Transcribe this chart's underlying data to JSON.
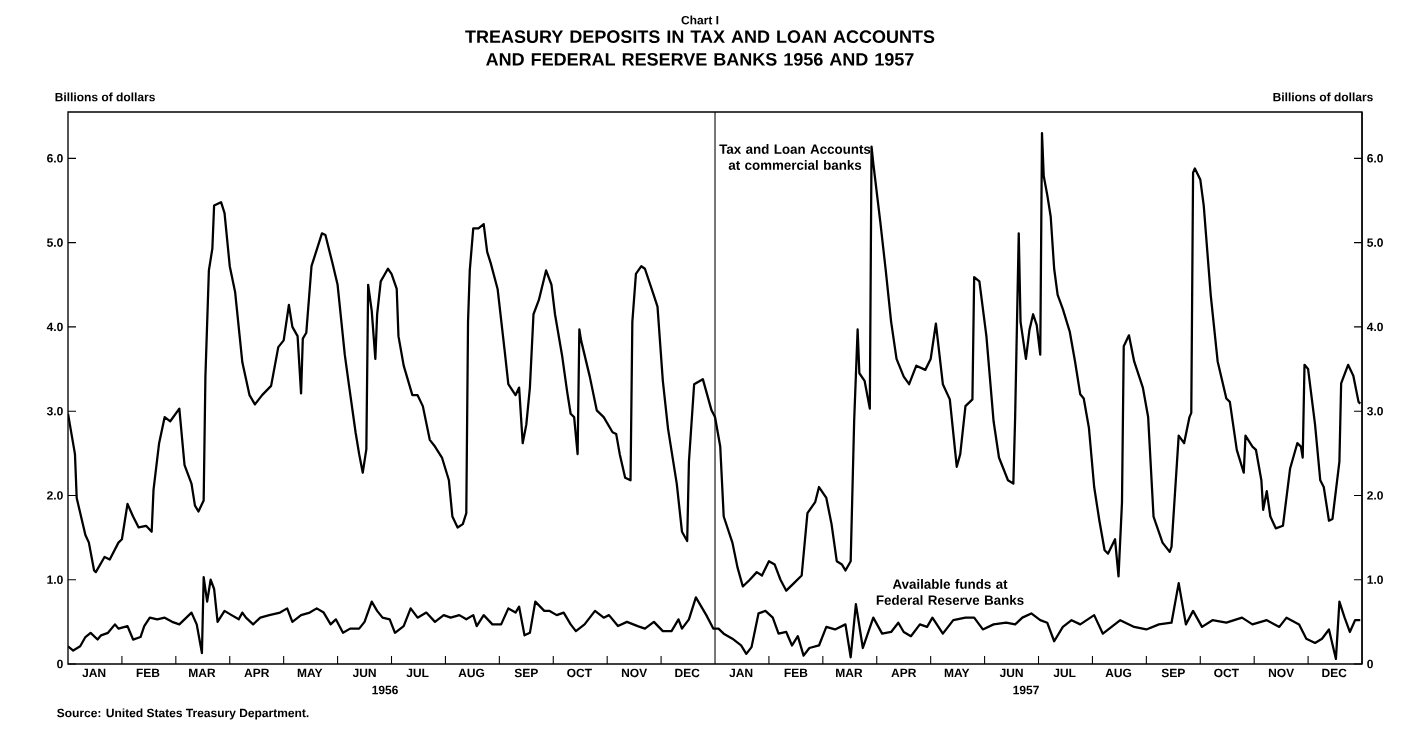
{
  "chart_data": {
    "type": "line",
    "subtitle": "Chart I",
    "title": "TREASURY DEPOSITS IN TAX AND LOAN ACCOUNTS AND FEDERAL RESERVE BANKS 1956 AND 1957",
    "ylabel": "Billions of dollars",
    "y2label": "Billions of dollars",
    "annotations": [
      "1956",
      "1957",
      "Source: United States Treasury Department."
    ],
    "xlim": [
      "1956-01-01",
      "1958-01-01"
    ],
    "ylim": [
      0,
      6.55
    ],
    "y2lim": [
      0,
      6.55
    ],
    "xticks": [
      {
        "value": "1956-01-16",
        "label": "JAN"
      },
      {
        "value": "1956-02-01",
        "label": null
      },
      {
        "value": "1956-02-15",
        "label": "FEB"
      },
      {
        "value": "1956-03-01",
        "label": null
      },
      {
        "value": "1956-03-16",
        "label": "MAR"
      },
      {
        "value": "1956-04-01",
        "label": null
      },
      {
        "value": "1956-04-16",
        "label": "APR"
      },
      {
        "value": "1956-05-01",
        "label": null
      },
      {
        "value": "1956-05-16",
        "label": "MAY"
      },
      {
        "value": "1956-06-01",
        "label": null
      },
      {
        "value": "1956-06-16",
        "label": "JUN"
      },
      {
        "value": "1956-07-01",
        "label": null
      },
      {
        "value": "1956-07-16",
        "label": "JUL"
      },
      {
        "value": "1956-08-01",
        "label": null
      },
      {
        "value": "1956-08-16",
        "label": "AUG"
      },
      {
        "value": "1956-09-01",
        "label": null
      },
      {
        "value": "1956-09-16",
        "label": "SEP"
      },
      {
        "value": "1956-10-01",
        "label": null
      },
      {
        "value": "1956-10-16",
        "label": "OCT"
      },
      {
        "value": "1956-11-01",
        "label": null
      },
      {
        "value": "1956-11-16",
        "label": "NOV"
      },
      {
        "value": "1956-12-01",
        "label": null
      },
      {
        "value": "1956-12-16",
        "label": "DEC"
      },
      {
        "value": "1957-01-16",
        "label": "JAN"
      },
      {
        "value": "1957-02-01",
        "label": null
      },
      {
        "value": "1957-02-15",
        "label": "FEB"
      },
      {
        "value": "1957-03-01",
        "label": null
      },
      {
        "value": "1957-03-16",
        "label": "MAR"
      },
      {
        "value": "1957-04-01",
        "label": null
      },
      {
        "value": "1957-04-16",
        "label": "APR"
      },
      {
        "value": "1957-05-01",
        "label": null
      },
      {
        "value": "1957-05-16",
        "label": "MAY"
      },
      {
        "value": "1957-06-01",
        "label": null
      },
      {
        "value": "1957-06-16",
        "label": "JUN"
      },
      {
        "value": "1957-07-01",
        "label": null
      },
      {
        "value": "1957-07-16",
        "label": "JUL"
      },
      {
        "value": "1957-08-01",
        "label": null
      },
      {
        "value": "1957-08-16",
        "label": "AUG"
      },
      {
        "value": "1957-09-01",
        "label": null
      },
      {
        "value": "1957-09-16",
        "label": "SEP"
      },
      {
        "value": "1957-10-01",
        "label": null
      },
      {
        "value": "1957-10-16",
        "label": "OCT"
      },
      {
        "value": "1957-11-01",
        "label": null
      },
      {
        "value": "1957-11-16",
        "label": "NOV"
      },
      {
        "value": "1957-12-01",
        "label": null
      },
      {
        "value": "1957-12-16",
        "label": "DEC"
      }
    ],
    "yticks": [
      0,
      {
        "value": 1,
        "label": "1.0"
      },
      {
        "value": 2,
        "label": "2.0"
      },
      {
        "value": 3,
        "label": "3.0"
      },
      {
        "value": 4,
        "label": "4.0"
      },
      {
        "value": 5,
        "label": "5.0"
      },
      {
        "value": 6,
        "label": "6.0"
      }
    ],
    "y2ticks": [
      0,
      {
        "value": 1,
        "label": "1.0"
      },
      {
        "value": 2,
        "label": "2.0"
      },
      {
        "value": 3,
        "label": "3.0"
      },
      {
        "value": 4,
        "label": "4.0"
      },
      {
        "value": 5,
        "label": "5.0"
      },
      {
        "value": 6,
        "label": "6.0"
      }
    ],
    "ref_lines": [
      {
        "axis": "x",
        "value": "1957-01-01"
      }
    ],
    "legend": false,
    "series": [
      {
        "name": "Tax and Loan Accounts at commercial banks",
        "color": "#000000",
        "x": [
          "1956-01-01",
          "1956-01-05",
          "1956-01-06",
          "1956-01-11",
          "1956-01-13",
          "1956-01-16",
          "1956-01-17",
          "1956-01-22",
          "1956-01-25",
          "1956-01-30",
          "1956-02-01",
          "1956-02-04",
          "1956-02-07",
          "1956-02-10",
          "1956-02-14",
          "1956-02-17",
          "1956-02-18",
          "1956-02-21",
          "1956-02-24",
          "1956-02-27",
          "1956-03-03",
          "1956-03-06",
          "1956-03-10",
          "1956-03-12",
          "1956-03-14",
          "1956-03-17",
          "1956-03-18",
          "1956-03-20",
          "1956-03-22",
          "1956-03-23",
          "1956-03-27",
          "1956-03-29",
          "1956-04-01",
          "1956-04-04",
          "1956-04-08",
          "1956-04-12",
          "1956-04-15",
          "1956-04-19",
          "1956-04-24",
          "1956-04-28",
          "1956-05-01",
          "1956-05-04",
          "1956-05-06",
          "1956-05-09",
          "1956-05-11",
          "1956-05-12",
          "1956-05-14",
          "1956-05-17",
          "1956-05-21",
          "1956-05-23",
          "1956-05-25",
          "1956-05-29",
          "1956-06-01",
          "1956-06-05",
          "1956-06-07",
          "1956-06-11",
          "1956-06-13",
          "1956-06-15",
          "1956-06-17",
          "1956-06-18",
          "1956-06-20",
          "1956-06-22",
          "1956-06-23",
          "1956-06-25",
          "1956-06-29",
          "1956-07-01",
          "1956-07-04",
          "1956-07-05",
          "1956-07-08",
          "1956-07-13",
          "1956-07-16",
          "1956-07-19",
          "1956-07-23",
          "1956-07-26",
          "1956-07-30",
          "1956-08-03",
          "1956-08-05",
          "1956-08-08",
          "1956-08-11",
          "1956-08-13",
          "1956-08-14",
          "1956-08-15",
          "1956-08-17",
          "1956-08-20",
          "1956-08-23",
          "1956-08-25",
          "1956-08-27",
          "1956-08-31",
          "1956-09-04",
          "1956-09-06",
          "1956-09-10",
          "1956-09-12",
          "1956-09-14",
          "1956-09-16",
          "1956-09-18",
          "1956-09-20",
          "1956-09-23",
          "1956-09-27",
          "1956-09-30",
          "1956-10-02",
          "1956-10-06",
          "1956-10-09",
          "1956-10-11",
          "1956-10-13",
          "1956-10-15",
          "1956-10-16",
          "1956-10-17",
          "1956-10-22",
          "1956-10-26",
          "1956-10-30",
          "1956-11-04",
          "1956-11-06",
          "1956-11-08",
          "1956-11-11",
          "1956-11-14",
          "1956-11-15",
          "1956-11-17",
          "1956-11-20",
          "1956-11-22",
          "1956-11-27",
          "1956-11-29",
          "1956-12-02",
          "1956-12-05",
          "1956-12-10",
          "1956-12-13",
          "1956-12-16",
          "1956-12-17",
          "1956-12-20",
          "1956-12-25",
          "1956-12-30",
          "1957-01-01",
          "1957-01-04",
          "1957-01-06",
          "1957-01-11",
          "1957-01-14",
          "1957-01-17",
          "1957-01-21",
          "1957-01-25",
          "1957-01-28",
          "1957-02-01",
          "1957-02-04",
          "1957-02-07",
          "1957-02-10",
          "1957-02-14",
          "1957-02-18",
          "1957-02-21",
          "1957-02-25",
          "1957-02-27",
          "1957-03-03",
          "1957-03-06",
          "1957-03-09",
          "1957-03-12",
          "1957-03-14",
          "1957-03-17",
          "1957-03-19",
          "1957-03-21",
          "1957-03-22",
          "1957-03-25",
          "1957-03-28",
          "1957-03-29",
          "1957-03-30",
          "1957-04-03",
          "1957-04-06",
          "1957-04-09",
          "1957-04-12",
          "1957-04-16",
          "1957-04-19",
          "1957-04-23",
          "1957-04-28",
          "1957-05-01",
          "1957-05-04",
          "1957-05-08",
          "1957-05-12",
          "1957-05-16",
          "1957-05-18",
          "1957-05-21",
          "1957-05-25",
          "1957-05-26",
          "1957-05-29",
          "1957-06-02",
          "1957-06-06",
          "1957-06-09",
          "1957-06-14",
          "1957-06-17",
          "1957-06-18",
          "1957-06-20",
          "1957-06-21",
          "1957-06-24",
          "1957-06-26",
          "1957-06-28",
          "1957-06-30",
          "1957-07-02",
          "1957-07-03",
          "1957-07-04",
          "1957-07-06",
          "1957-07-08",
          "1957-07-10",
          "1957-07-12",
          "1957-07-15",
          "1957-07-19",
          "1957-07-22",
          "1957-07-25",
          "1957-07-27",
          "1957-07-30",
          "1957-08-02",
          "1957-08-05",
          "1957-08-08",
          "1957-08-10",
          "1957-08-14",
          "1957-08-16",
          "1957-08-18",
          "1957-08-19",
          "1957-08-22",
          "1957-08-25",
          "1957-08-30",
          "1957-09-02",
          "1957-09-05",
          "1957-09-10",
          "1957-09-14",
          "1957-09-15",
          "1957-09-19",
          "1957-09-22",
          "1957-09-25",
          "1957-09-26",
          "1957-09-27",
          "1957-09-28",
          "1957-10-01",
          "1957-10-03",
          "1957-10-07",
          "1957-10-11",
          "1957-10-16",
          "1957-10-18",
          "1957-10-22",
          "1957-10-26",
          "1957-10-27",
          "1957-10-31",
          "1957-11-02",
          "1957-11-05",
          "1957-11-06",
          "1957-11-08",
          "1957-11-10",
          "1957-11-13",
          "1957-11-17",
          "1957-11-21",
          "1957-11-25",
          "1957-11-27",
          "1957-11-28",
          "1957-11-29",
          "1957-12-01",
          "1957-12-05",
          "1957-12-08",
          "1957-12-10",
          "1957-12-13",
          "1957-12-15",
          "1957-12-19",
          "1957-12-20",
          "1957-12-24",
          "1957-12-27",
          "1957-12-30",
          "1957-12-31"
        ],
        "values": [
          2.97,
          2.49,
          1.97,
          1.53,
          1.44,
          1.11,
          1.09,
          1.27,
          1.24,
          1.44,
          1.48,
          1.9,
          1.75,
          1.62,
          1.64,
          1.57,
          2.07,
          2.62,
          2.93,
          2.88,
          3.03,
          2.36,
          2.14,
          1.88,
          1.81,
          1.94,
          3.41,
          4.67,
          4.93,
          5.44,
          5.48,
          5.35,
          4.72,
          4.41,
          3.58,
          3.19,
          3.08,
          3.19,
          3.3,
          3.76,
          3.84,
          4.26,
          4.0,
          3.89,
          3.21,
          3.86,
          3.93,
          4.72,
          4.98,
          5.11,
          5.09,
          4.76,
          4.5,
          3.67,
          3.36,
          2.75,
          2.49,
          2.27,
          2.55,
          4.5,
          4.19,
          3.62,
          4.15,
          4.54,
          4.69,
          4.63,
          4.45,
          3.89,
          3.54,
          3.19,
          3.19,
          3.06,
          2.66,
          2.58,
          2.45,
          2.18,
          1.75,
          1.62,
          1.66,
          1.79,
          4.06,
          4.67,
          5.17,
          5.17,
          5.22,
          4.89,
          4.76,
          4.45,
          3.71,
          3.32,
          3.19,
          3.28,
          2.62,
          2.84,
          3.28,
          4.15,
          4.32,
          4.67,
          4.5,
          4.15,
          3.67,
          3.23,
          2.97,
          2.93,
          2.49,
          3.97,
          3.84,
          3.41,
          3.01,
          2.93,
          2.75,
          2.73,
          2.49,
          2.21,
          2.18,
          4.06,
          4.63,
          4.72,
          4.69,
          4.37,
          4.24,
          3.36,
          2.79,
          2.14,
          1.57,
          1.46,
          2.4,
          3.32,
          3.38,
          3.01,
          2.93,
          2.58,
          1.75,
          1.44,
          1.14,
          0.92,
          1.0,
          1.09,
          1.05,
          1.22,
          1.18,
          1.0,
          0.87,
          0.96,
          1.05,
          1.79,
          1.92,
          2.1,
          1.97,
          1.66,
          1.22,
          1.18,
          1.11,
          1.22,
          2.88,
          3.97,
          3.45,
          3.36,
          3.03,
          6.14,
          5.94,
          5.24,
          4.67,
          4.06,
          3.62,
          3.41,
          3.32,
          3.54,
          3.49,
          3.62,
          4.04,
          3.32,
          3.14,
          2.34,
          2.49,
          3.06,
          3.14,
          4.59,
          4.54,
          3.89,
          2.88,
          2.45,
          2.18,
          2.14,
          2.93,
          5.11,
          4.06,
          3.62,
          3.97,
          4.15,
          4.02,
          3.67,
          6.3,
          5.79,
          5.57,
          5.31,
          4.69,
          4.38,
          4.21,
          3.94,
          3.59,
          3.2,
          3.15,
          2.8,
          2.1,
          1.7,
          1.35,
          1.31,
          1.48,
          1.04,
          1.92,
          3.77,
          3.9,
          3.59,
          3.28,
          2.93,
          1.75,
          1.44,
          1.33,
          1.39,
          2.71,
          2.62,
          2.93,
          2.98,
          5.83,
          5.88,
          5.75,
          5.44,
          4.38,
          3.59,
          3.15,
          3.11,
          2.54,
          2.27,
          2.71,
          2.58,
          2.54,
          2.18,
          1.83,
          2.05,
          1.75,
          1.61,
          1.64,
          2.32,
          2.62,
          2.58,
          2.45,
          3.55,
          3.5,
          2.84,
          2.18,
          2.1,
          1.7,
          1.72,
          2.4,
          3.33,
          3.55,
          3.42,
          3.11,
          3.09
        ]
      },
      {
        "name": "Available funds at Federal Reserve Banks",
        "color": "#000000",
        "x": [
          "1956-01-01",
          "1956-01-04",
          "1956-01-08",
          "1956-01-11",
          "1956-01-14",
          "1956-01-18",
          "1956-01-20",
          "1956-01-24",
          "1956-01-28",
          "1956-01-30",
          "1956-02-04",
          "1956-02-07",
          "1956-02-11",
          "1956-02-13",
          "1956-02-16",
          "1956-02-20",
          "1956-02-24",
          "1956-02-28",
          "1956-03-03",
          "1956-03-06",
          "1956-03-10",
          "1956-03-13",
          "1956-03-16",
          "1956-03-17",
          "1956-03-19",
          "1956-03-21",
          "1956-03-23",
          "1956-03-25",
          "1956-03-29",
          "1956-04-02",
          "1956-04-06",
          "1956-04-08",
          "1956-04-10",
          "1956-04-14",
          "1956-04-18",
          "1956-04-23",
          "1956-04-29",
          "1956-05-03",
          "1956-05-06",
          "1956-05-11",
          "1956-05-16",
          "1956-05-20",
          "1956-05-24",
          "1956-05-28",
          "1956-05-31",
          "1956-06-04",
          "1956-06-08",
          "1956-06-13",
          "1956-06-16",
          "1956-06-20",
          "1956-06-23",
          "1956-06-26",
          "1956-06-30",
          "1956-07-03",
          "1956-07-08",
          "1956-07-12",
          "1956-07-16",
          "1956-07-21",
          "1956-07-26",
          "1956-07-31",
          "1956-08-04",
          "1956-08-09",
          "1956-08-13",
          "1956-08-17",
          "1956-08-19",
          "1956-08-23",
          "1956-08-28",
          "1956-09-02",
          "1956-09-06",
          "1956-09-10",
          "1956-09-12",
          "1956-09-15",
          "1956-09-18",
          "1956-09-21",
          "1956-09-26",
          "1956-09-29",
          "1956-10-03",
          "1956-10-07",
          "1956-10-11",
          "1956-10-14",
          "1956-10-19",
          "1956-10-25",
          "1956-10-30",
          "1956-11-02",
          "1956-11-07",
          "1956-11-12",
          "1956-11-18",
          "1956-11-22",
          "1956-11-27",
          "1956-12-02",
          "1956-12-07",
          "1956-12-11",
          "1956-12-13",
          "1956-12-17",
          "1956-12-21",
          "1956-12-27",
          "1956-12-31",
          "1957-01-03",
          "1957-01-06",
          "1957-01-11",
          "1957-01-16",
          "1957-01-19",
          "1957-01-22",
          "1957-01-26",
          "1957-01-30",
          "1957-02-03",
          "1957-02-06",
          "1957-02-10",
          "1957-02-13",
          "1957-02-16",
          "1957-02-19",
          "1957-02-22",
          "1957-02-27",
          "1957-03-03",
          "1957-03-08",
          "1957-03-14",
          "1957-03-17",
          "1957-03-20",
          "1957-03-24",
          "1957-03-30",
          "1957-04-04",
          "1957-04-09",
          "1957-04-13",
          "1957-04-16",
          "1957-04-20",
          "1957-04-25",
          "1957-04-29",
          "1957-05-02",
          "1957-05-08",
          "1957-05-14",
          "1957-05-21",
          "1957-05-26",
          "1957-05-31",
          "1957-06-06",
          "1957-06-13",
          "1957-06-18",
          "1957-06-22",
          "1957-06-27",
          "1957-07-02",
          "1957-07-06",
          "1957-07-10",
          "1957-07-15",
          "1957-07-20",
          "1957-07-25",
          "1957-08-02",
          "1957-08-07",
          "1957-08-12",
          "1957-08-17",
          "1957-08-25",
          "1957-09-01",
          "1957-09-08",
          "1957-09-15",
          "1957-09-19",
          "1957-09-23",
          "1957-09-27",
          "1957-10-02",
          "1957-10-08",
          "1957-10-16",
          "1957-10-25",
          "1957-10-31",
          "1957-11-08",
          "1957-11-15",
          "1957-11-19",
          "1957-11-26",
          "1957-11-30",
          "1957-12-05",
          "1957-12-09",
          "1957-12-13",
          "1957-12-17",
          "1957-12-19",
          "1957-12-22",
          "1957-12-25",
          "1957-12-28",
          "1957-12-31"
        ],
        "values": [
          0.21,
          0.16,
          0.21,
          0.32,
          0.37,
          0.29,
          0.34,
          0.37,
          0.47,
          0.42,
          0.45,
          0.29,
          0.32,
          0.45,
          0.55,
          0.53,
          0.55,
          0.5,
          0.47,
          0.53,
          0.61,
          0.47,
          0.13,
          1.03,
          0.74,
          1.0,
          0.89,
          0.5,
          0.63,
          0.58,
          0.53,
          0.61,
          0.55,
          0.47,
          0.55,
          0.58,
          0.61,
          0.66,
          0.5,
          0.58,
          0.61,
          0.66,
          0.61,
          0.47,
          0.53,
          0.37,
          0.42,
          0.42,
          0.5,
          0.74,
          0.63,
          0.55,
          0.53,
          0.37,
          0.45,
          0.66,
          0.55,
          0.61,
          0.5,
          0.58,
          0.55,
          0.58,
          0.53,
          0.58,
          0.45,
          0.58,
          0.47,
          0.47,
          0.66,
          0.61,
          0.68,
          0.34,
          0.37,
          0.74,
          0.63,
          0.63,
          0.58,
          0.61,
          0.47,
          0.39,
          0.47,
          0.63,
          0.55,
          0.58,
          0.45,
          0.5,
          0.45,
          0.42,
          0.5,
          0.39,
          0.39,
          0.53,
          0.42,
          0.53,
          0.79,
          0.58,
          0.42,
          0.42,
          0.36,
          0.3,
          0.22,
          0.12,
          0.2,
          0.6,
          0.63,
          0.55,
          0.36,
          0.38,
          0.22,
          0.33,
          0.1,
          0.19,
          0.22,
          0.44,
          0.41,
          0.47,
          0.08,
          0.71,
          0.19,
          0.55,
          0.36,
          0.38,
          0.49,
          0.38,
          0.33,
          0.47,
          0.44,
          0.55,
          0.36,
          0.52,
          0.55,
          0.55,
          0.41,
          0.47,
          0.49,
          0.47,
          0.55,
          0.6,
          0.52,
          0.49,
          0.27,
          0.44,
          0.52,
          0.47,
          0.58,
          0.36,
          0.44,
          0.52,
          0.44,
          0.41,
          0.47,
          0.49,
          0.96,
          0.47,
          0.63,
          0.44,
          0.52,
          0.49,
          0.55,
          0.47,
          0.52,
          0.44,
          0.55,
          0.47,
          0.3,
          0.25,
          0.3,
          0.41,
          0.06,
          0.74,
          0.55,
          0.38,
          0.52,
          0.52
        ]
      }
    ]
  }
}
